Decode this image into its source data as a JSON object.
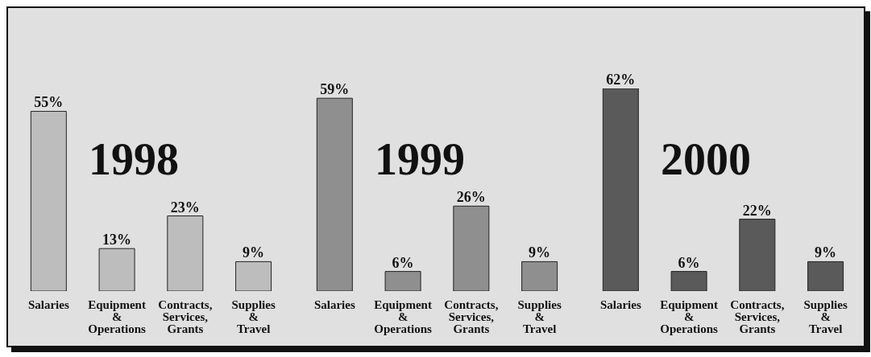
{
  "chart_data": [
    {
      "type": "bar",
      "title": "1998",
      "categories": [
        "Salaries",
        "Equipment & Operations",
        "Contracts, Services, Grants",
        "Supplies & Travel"
      ],
      "values": [
        55,
        13,
        23,
        9
      ],
      "value_labels": [
        "55%",
        "13%",
        "23%",
        "9%"
      ],
      "color": "#bdbdbd"
    },
    {
      "type": "bar",
      "title": "1999",
      "categories": [
        "Salaries",
        "Equipment & Operations",
        "Contracts, Services, Grants",
        "Supplies & Travel"
      ],
      "values": [
        59,
        6,
        26,
        9
      ],
      "value_labels": [
        "59%",
        "6%",
        "26%",
        "9%"
      ],
      "color": "#8f8f8f"
    },
    {
      "type": "bar",
      "title": "2000",
      "categories": [
        "Salaries",
        "Equipment & Operations",
        "Contracts, Services, Grants",
        "Supplies & Travel"
      ],
      "values": [
        62,
        6,
        22,
        9
      ],
      "value_labels": [
        "62%",
        "6%",
        "22%",
        "9%"
      ],
      "color": "#5a5a5a"
    }
  ]
}
